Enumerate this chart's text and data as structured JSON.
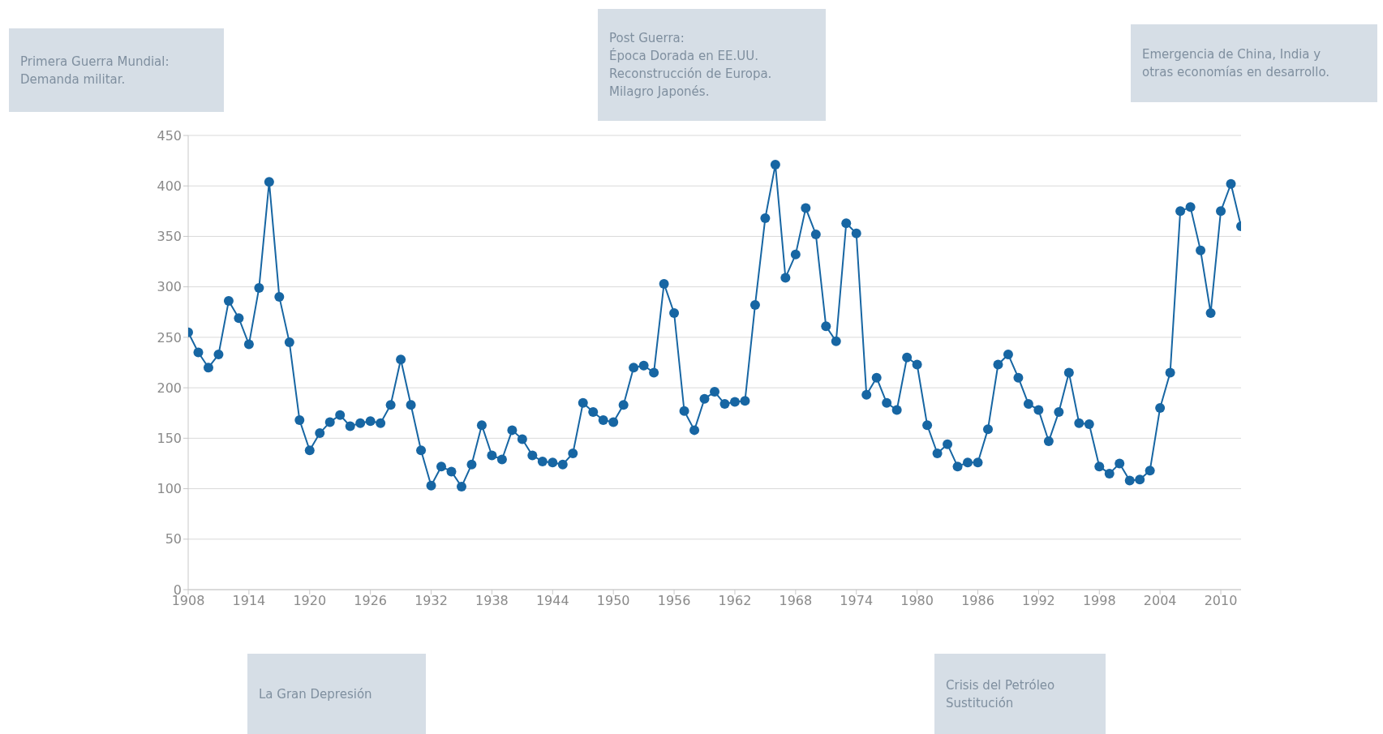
{
  "chart_data": {
    "type": "line",
    "x": [
      1908,
      1909,
      1910,
      1911,
      1912,
      1913,
      1914,
      1915,
      1916,
      1917,
      1918,
      1919,
      1920,
      1921,
      1922,
      1923,
      1924,
      1925,
      1926,
      1927,
      1928,
      1929,
      1930,
      1931,
      1932,
      1933,
      1934,
      1935,
      1936,
      1937,
      1938,
      1939,
      1940,
      1941,
      1942,
      1943,
      1944,
      1945,
      1946,
      1947,
      1948,
      1949,
      1950,
      1951,
      1952,
      1953,
      1954,
      1955,
      1956,
      1957,
      1958,
      1959,
      1960,
      1961,
      1962,
      1963,
      1964,
      1965,
      1966,
      1967,
      1968,
      1969,
      1970,
      1971,
      1972,
      1973,
      1974,
      1975,
      1976,
      1977,
      1978,
      1979,
      1980,
      1981,
      1982,
      1983,
      1984,
      1985,
      1986,
      1987,
      1988,
      1989,
      1990,
      1991,
      1992,
      1993,
      1994,
      1995,
      1996,
      1997,
      1998,
      1999,
      2000,
      2001,
      2002,
      2003,
      2004,
      2005,
      2006,
      2007,
      2008,
      2009,
      2010,
      2011,
      2012
    ],
    "series": [
      {
        "color": "#1766a3",
        "values": [
          255,
          235,
          220,
          233,
          286,
          269,
          243,
          299,
          404,
          290,
          245,
          168,
          138,
          155,
          166,
          173,
          162,
          165,
          167,
          165,
          183,
          228,
          183,
          138,
          103,
          122,
          117,
          102,
          124,
          163,
          133,
          129,
          158,
          149,
          133,
          127,
          126,
          124,
          135,
          185,
          176,
          168,
          166,
          183,
          220,
          222,
          215,
          303,
          274,
          177,
          158,
          189,
          196,
          184,
          186,
          187,
          282,
          368,
          421,
          309,
          332,
          378,
          352,
          261,
          246,
          363,
          353,
          193,
          210,
          185,
          178,
          230,
          223,
          163,
          135,
          144,
          122,
          126,
          126,
          159,
          223,
          233,
          210,
          184,
          178,
          147,
          176,
          215,
          165,
          164,
          122,
          115,
          125,
          108,
          109,
          118,
          180,
          215,
          375,
          379,
          336,
          274,
          375,
          402,
          360
        ]
      }
    ],
    "xlim": [
      1908,
      2012
    ],
    "xticks": [
      1908,
      1914,
      1920,
      1926,
      1932,
      1938,
      1944,
      1950,
      1956,
      1962,
      1968,
      1974,
      1980,
      1986,
      1992,
      1998,
      2004,
      2010
    ],
    "ylim": [
      0,
      450
    ],
    "yticks": [
      0,
      50,
      100,
      150,
      200,
      250,
      300,
      350,
      400,
      450
    ],
    "grid": "y",
    "marker": "circle",
    "line_style": "solid",
    "annotations": [
      "Primera Guerra Mundial:\nDemanda militar.",
      "Post Guerra:\nÉpoca Dorada en EE.UU.\nReconstrucción de Europa.\nMilagro Japonés.",
      "Emergencia de China, India y\notras economías en desarrollo.",
      "La Gran Depresión",
      "Crisis del Petróleo\nSustitución"
    ]
  }
}
